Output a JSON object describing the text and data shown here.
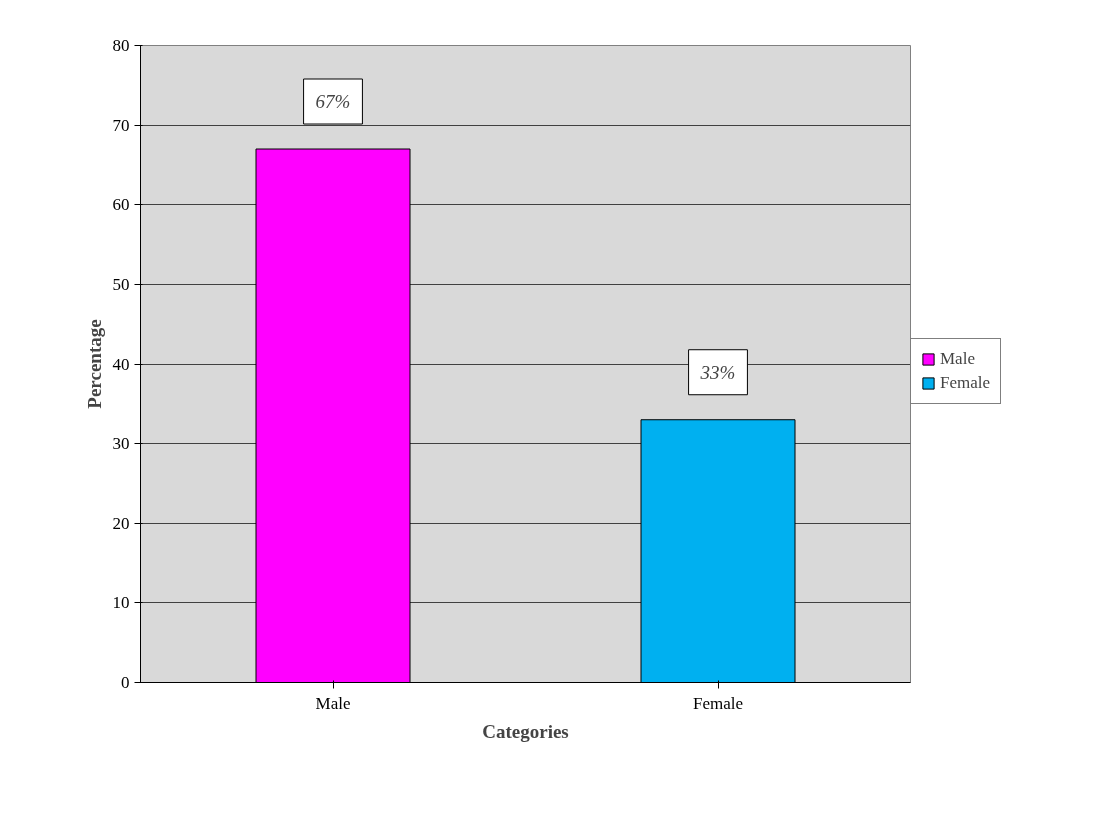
{
  "chart_data": {
    "type": "bar",
    "xlabel": "Categories",
    "ylabel": "Percentage",
    "categories": [
      "Male",
      "Female"
    ],
    "series": [
      {
        "name": "Male",
        "color": "#ff00ff",
        "values": [
          67,
          null
        ],
        "value_labels": [
          "67%",
          null
        ]
      },
      {
        "name": "Female",
        "color": "#00b0f0",
        "values": [
          null,
          33
        ],
        "value_labels": [
          null,
          "33%"
        ]
      }
    ],
    "ylim": [
      0,
      80
    ],
    "yticks": [
      0,
      10,
      20,
      30,
      40,
      50,
      60,
      70,
      80
    ],
    "grid": "y",
    "legend": "right"
  }
}
